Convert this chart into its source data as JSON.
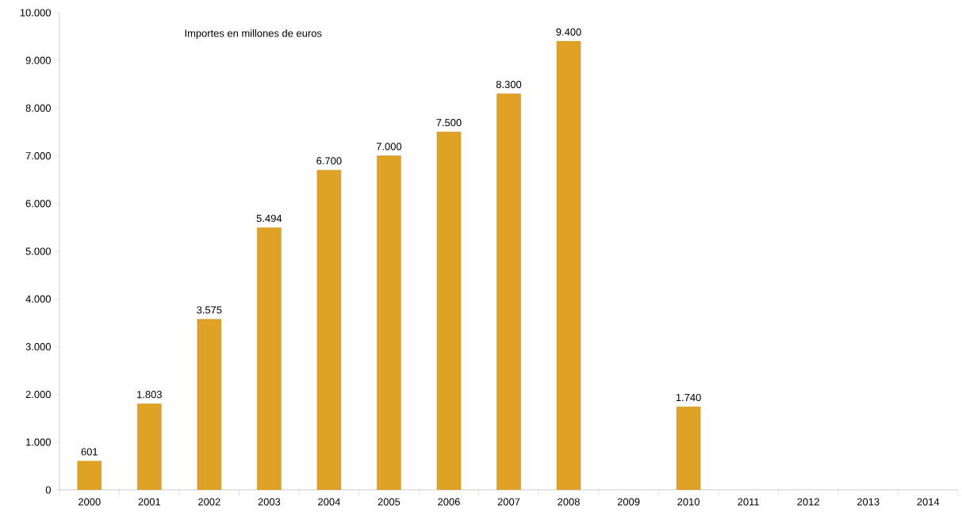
{
  "chart_data": {
    "type": "bar",
    "annotations": [
      "Importes en millones de euros"
    ],
    "categories": [
      "2000",
      "2001",
      "2002",
      "2003",
      "2004",
      "2005",
      "2006",
      "2007",
      "2008",
      "2009",
      "2010",
      "2011",
      "2012",
      "2013",
      "2014"
    ],
    "values": [
      601,
      1803,
      3575,
      5494,
      6700,
      7000,
      7500,
      8300,
      9400,
      null,
      1740,
      null,
      null,
      null,
      null
    ],
    "value_labels": [
      "601",
      "1.803",
      "3.575",
      "5.494",
      "6.700",
      "7.000",
      "7.500",
      "8.300",
      "9.400",
      null,
      "1.740",
      null,
      null,
      null,
      null
    ],
    "color": "#e0a224",
    "ylim": [
      0,
      10000
    ],
    "yticks": [
      0,
      {
        "value": 1000,
        "label": "1.000"
      },
      {
        "value": 2000,
        "label": "2.000"
      },
      {
        "value": 3000,
        "label": "3.000"
      },
      {
        "value": 4000,
        "label": "4.000"
      },
      {
        "value": 5000,
        "label": "5.000"
      },
      {
        "value": 6000,
        "label": "6.000"
      },
      {
        "value": 7000,
        "label": "7.000"
      },
      {
        "value": 8000,
        "label": "8.000"
      },
      {
        "value": 9000,
        "label": "9.000"
      },
      {
        "value": 10000,
        "label": "10.000"
      }
    ],
    "grid": false
  }
}
